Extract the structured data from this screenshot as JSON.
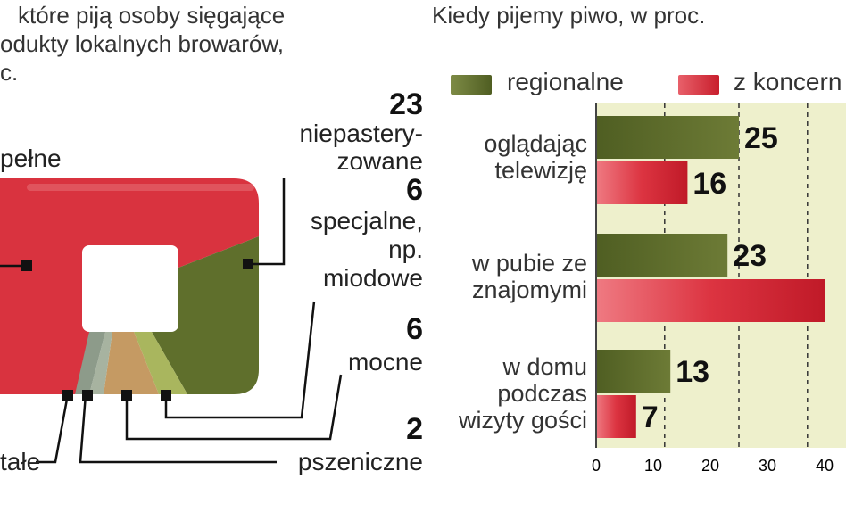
{
  "intro_lines": [
    "które piją osoby sięgające",
    "odukty lokalnych browarów,",
    "c."
  ],
  "shares": {
    "pelne": {
      "label": "pełne"
    },
    "niepasteryzowane": {
      "value": "23",
      "label_l1": "niepastery-",
      "label_l2": "zowane"
    },
    "specjalne": {
      "value": "6",
      "label_l1": "specjalne,",
      "label_l2": "np.",
      "label_l3": "miodowe"
    },
    "mocne": {
      "value": "6",
      "label": "mocne"
    },
    "pszeniczne": {
      "value": "2",
      "label": "pszeniczne"
    },
    "pozostale": {
      "label": "tałe"
    }
  },
  "colors": {
    "regional": "#5c6b2a",
    "koncern": "#d42a36",
    "pie_red": "#d9333f",
    "pie_green": "#5f6f2c",
    "slice_grey": "#8d9b8a",
    "slice_tan": "#c59a63",
    "slice_lightgreen": "#a9b65e",
    "plot_bg": "#eef0cc"
  },
  "chart_data": {
    "type": "bar",
    "orientation": "horizontal",
    "title": "Kiedy pijemy piwo, w proc.",
    "categories": [
      "oglądając telewizję",
      "w pubie ze znajomymi",
      "w domu podczas wizyty gości"
    ],
    "category_lines": [
      [
        "oglądając",
        "telewizję"
      ],
      [
        "w pubie ze",
        "znajomymi"
      ],
      [
        "w domu",
        "podczas",
        "wizyty gości"
      ]
    ],
    "series": [
      {
        "name": "regionalne",
        "values": [
          25,
          23,
          13
        ],
        "labels": [
          "25",
          "23",
          "13"
        ]
      },
      {
        "name": "z koncern",
        "values": [
          16,
          40,
          7
        ],
        "labels": [
          "16",
          "",
          "7"
        ]
      }
    ],
    "xlim": [
      0,
      40
    ],
    "ticks": [
      "0",
      "10",
      "20",
      "30",
      "40"
    ],
    "dashed_gridlines": [
      12,
      25,
      37
    ],
    "legend_position": "top"
  }
}
